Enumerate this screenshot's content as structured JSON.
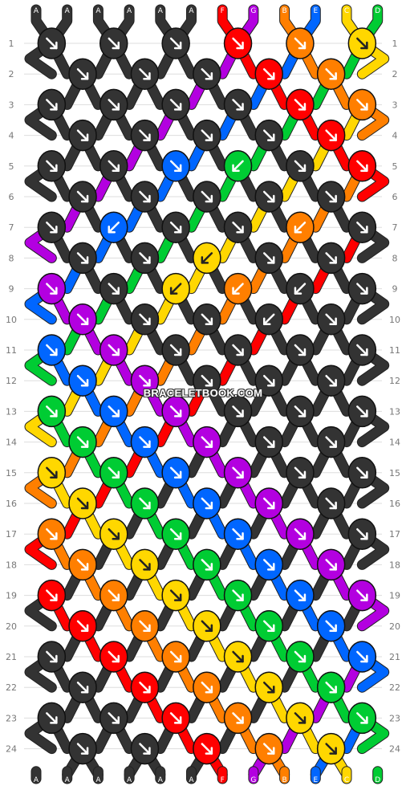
{
  "strands": {
    "labels": [
      "A",
      "A",
      "A",
      "A",
      "A",
      "A",
      "F",
      "G",
      "B",
      "E",
      "C",
      "D"
    ],
    "colors": {
      "A": "#333333",
      "B": "#ff7f00",
      "C": "#ffd700",
      "D": "#00cc33",
      "E": "#0066ff",
      "F": "#ff0000",
      "G": "#b300e0"
    }
  },
  "rows": [
    "1",
    "2",
    "3",
    "4",
    "5",
    "6",
    "7",
    "8",
    "9",
    "10",
    "11",
    "12",
    "13",
    "14",
    "15",
    "16",
    "17",
    "18",
    "19",
    "20",
    "21",
    "22",
    "23",
    "24"
  ],
  "knots": [
    [
      "A",
      "A",
      "A",
      "F",
      "B",
      "C"
    ],
    [
      "A",
      "A",
      "A",
      "F",
      "B"
    ],
    [
      "A",
      "A",
      "A",
      "A",
      "F",
      "B"
    ],
    [
      "A",
      "A",
      "A",
      "A",
      "F"
    ],
    [
      "A",
      "A",
      "E",
      "D",
      "A",
      "F"
    ],
    [
      "A",
      "A",
      "A",
      "A",
      "A"
    ],
    [
      "A",
      "E",
      "A",
      "A",
      "B",
      "A"
    ],
    [
      "A",
      "A",
      "C",
      "A",
      "A"
    ],
    [
      "G",
      "A",
      "C",
      "B",
      "A",
      "A"
    ],
    [
      "G",
      "A",
      "A",
      "A",
      "A"
    ],
    [
      "E",
      "G",
      "A",
      "A",
      "A",
      "A"
    ],
    [
      "E",
      "G",
      "A",
      "A",
      "A"
    ],
    [
      "D",
      "E",
      "G",
      "A",
      "A",
      "A"
    ],
    [
      "D",
      "E",
      "G",
      "A",
      "A"
    ],
    [
      "C",
      "D",
      "E",
      "G",
      "A",
      "A"
    ],
    [
      "C",
      "D",
      "E",
      "G",
      "A"
    ],
    [
      "B",
      "C",
      "D",
      "E",
      "G",
      "A"
    ],
    [
      "B",
      "C",
      "D",
      "E",
      "G"
    ],
    [
      "F",
      "B",
      "C",
      "D",
      "E",
      "G"
    ],
    [
      "F",
      "B",
      "C",
      "D",
      "E"
    ],
    [
      "A",
      "F",
      "B",
      "C",
      "D",
      "E"
    ],
    [
      "A",
      "F",
      "B",
      "C",
      "D"
    ],
    [
      "A",
      "A",
      "F",
      "B",
      "C",
      "D"
    ],
    [
      "A",
      "A",
      "F",
      "B",
      "C"
    ]
  ],
  "knot_types": [
    [
      "f",
      "f",
      "f",
      "f",
      "f",
      "f"
    ],
    [
      "f",
      "f",
      "f",
      "f",
      "f"
    ],
    [
      "f",
      "f",
      "f",
      "f",
      "f",
      "f"
    ],
    [
      "f",
      "f",
      "f",
      "f",
      "f"
    ],
    [
      "f",
      "f",
      "f",
      "b",
      "f",
      "f"
    ],
    [
      "f",
      "f",
      "f",
      "f",
      "f"
    ],
    [
      "f",
      "b",
      "f",
      "f",
      "b",
      "f"
    ],
    [
      "f",
      "f",
      "b",
      "f",
      "f"
    ],
    [
      "f",
      "f",
      "b",
      "b",
      "b",
      "f"
    ],
    [
      "f",
      "f",
      "f",
      "b",
      "f"
    ],
    [
      "f",
      "f",
      "f",
      "f",
      "f",
      "f"
    ],
    [
      "f",
      "f",
      "f",
      "f",
      "f"
    ],
    [
      "f",
      "f",
      "f",
      "f",
      "f",
      "f"
    ],
    [
      "f",
      "f",
      "f",
      "f",
      "f"
    ],
    [
      "f",
      "f",
      "f",
      "f",
      "f",
      "f"
    ],
    [
      "f",
      "f",
      "f",
      "f",
      "f"
    ],
    [
      "f",
      "f",
      "f",
      "f",
      "f",
      "f"
    ],
    [
      "f",
      "f",
      "f",
      "f",
      "f"
    ],
    [
      "f",
      "f",
      "f",
      "f",
      "f",
      "f"
    ],
    [
      "f",
      "f",
      "f",
      "f",
      "f"
    ],
    [
      "f",
      "f",
      "f",
      "f",
      "f",
      "f"
    ],
    [
      "f",
      "f",
      "f",
      "f",
      "f"
    ],
    [
      "f",
      "f",
      "f",
      "f",
      "f",
      "f"
    ],
    [
      "f",
      "f",
      "f",
      "f",
      "f"
    ]
  ],
  "bottom_labels": [
    "A",
    "A",
    "A",
    "A",
    "A",
    "A",
    "F",
    "G",
    "B",
    "E",
    "C",
    "D"
  ],
  "watermark": "BRACELETBOOK.COM"
}
